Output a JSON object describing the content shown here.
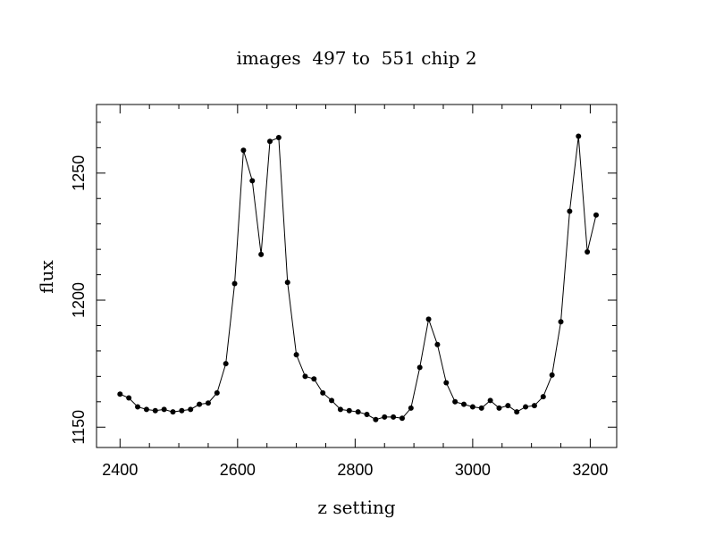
{
  "chart_data": {
    "type": "line",
    "title": "images  497 to  551 chip 2",
    "xlabel": "z setting",
    "ylabel": "flux",
    "xlim": [
      2360,
      3245
    ],
    "ylim": [
      1142,
      1277
    ],
    "x_ticks": [
      2400,
      2600,
      2800,
      3000,
      3200
    ],
    "x_tick_labels": [
      "2400",
      "2600",
      "2800",
      "3000",
      "3200"
    ],
    "x_minor_step": 50,
    "y_ticks": [
      1150,
      1200,
      1250
    ],
    "y_tick_labels": [
      "1150",
      "1200",
      "1250"
    ],
    "y_minor_step": 10,
    "grid": false,
    "markers": true,
    "series": [
      {
        "color": "#000000",
        "x": [
          2400,
          2415,
          2430,
          2445,
          2460,
          2475,
          2490,
          2505,
          2520,
          2535,
          2550,
          2565,
          2580,
          2595,
          2610,
          2625,
          2640,
          2655,
          2670,
          2685,
          2700,
          2715,
          2730,
          2745,
          2760,
          2775,
          2790,
          2805,
          2820,
          2835,
          2850,
          2865,
          2880,
          2895,
          2910,
          2925,
          2940,
          2955,
          2970,
          2985,
          3000,
          3015,
          3030,
          3045,
          3060,
          3075,
          3090,
          3105,
          3120,
          3135,
          3150,
          3165,
          3180,
          3195,
          3210
        ],
        "y": [
          1163,
          1161.5,
          1158,
          1157,
          1156.5,
          1157,
          1156,
          1156.5,
          1157,
          1159,
          1159.5,
          1163.5,
          1175,
          1206.5,
          1259,
          1247,
          1218,
          1262.5,
          1264,
          1207,
          1178.5,
          1170,
          1169,
          1163.5,
          1160.5,
          1157,
          1156.5,
          1156,
          1155,
          1153,
          1154,
          1154,
          1153.5,
          1157.5,
          1173.5,
          1192.5,
          1182.5,
          1167.5,
          1160,
          1159,
          1158,
          1157.5,
          1160.5,
          1157.5,
          1158.5,
          1156,
          1158,
          1158.5,
          1162,
          1170.5,
          1191.5,
          1235,
          1264.5,
          1219,
          1233.5
        ]
      }
    ]
  }
}
